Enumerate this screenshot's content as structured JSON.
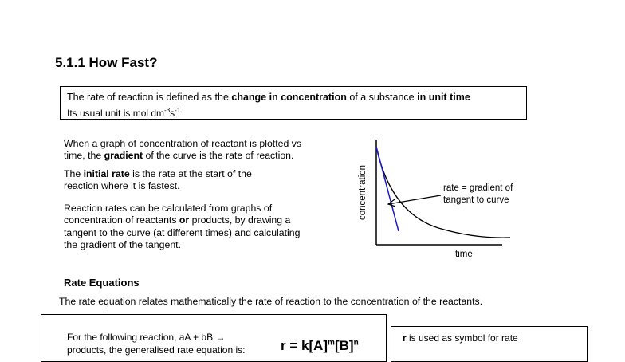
{
  "title": "5.1.1 How Fast?",
  "definition": {
    "line1_a": "The rate of reaction is defined  as the ",
    "line1_b": "change in concentration",
    "line1_c": " of a substance ",
    "line1_d": "in unit time",
    "line2_a": "Its usual unit is mol dm",
    "line2_sup1": "-3",
    "line2_b": "s",
    "line2_sup2": "-1"
  },
  "para1": {
    "line1": "When a graph of concentration of reactant is plotted vs",
    "line2_a": "time, the ",
    "line2_b": "gradient",
    "line2_c": " of the curve is the rate of reaction."
  },
  "para2": {
    "line1_a": "The ",
    "line1_b": "initial rate",
    "line1_c": " is the rate at the start of the",
    "line2": "reaction where it is fastest."
  },
  "para3": {
    "line1": "Reaction rates can be calculated from graphs of",
    "line2_a": "concentration of reactants ",
    "line2_b": "or",
    "line2_c": " products, by drawing a",
    "line3": "tangent to the curve (at different times) and calculating",
    "line4": "the gradient of the tangent."
  },
  "graph": {
    "y_axis_label": "concentration",
    "x_axis_label": "time",
    "annotation_line1": "rate = gradient of",
    "annotation_line2": "tangent to curve",
    "tangent_color": "#1a1acc",
    "curve_color": "#000000"
  },
  "rate_equations": {
    "heading": "Rate Equations",
    "intro": "The rate equation relates mathematically the rate of reaction to the concentration of the reactants.",
    "left_box_line1": "For the following reaction,   aA + bB →",
    "left_box_line2": "products, the generalised rate equation is:",
    "formula_a": "r = k[A]",
    "formula_m": "m",
    "formula_b": "[B]",
    "formula_n": "n",
    "right_box_line1_a": "r",
    "right_box_line1_b": " is used as symbol for rate"
  }
}
